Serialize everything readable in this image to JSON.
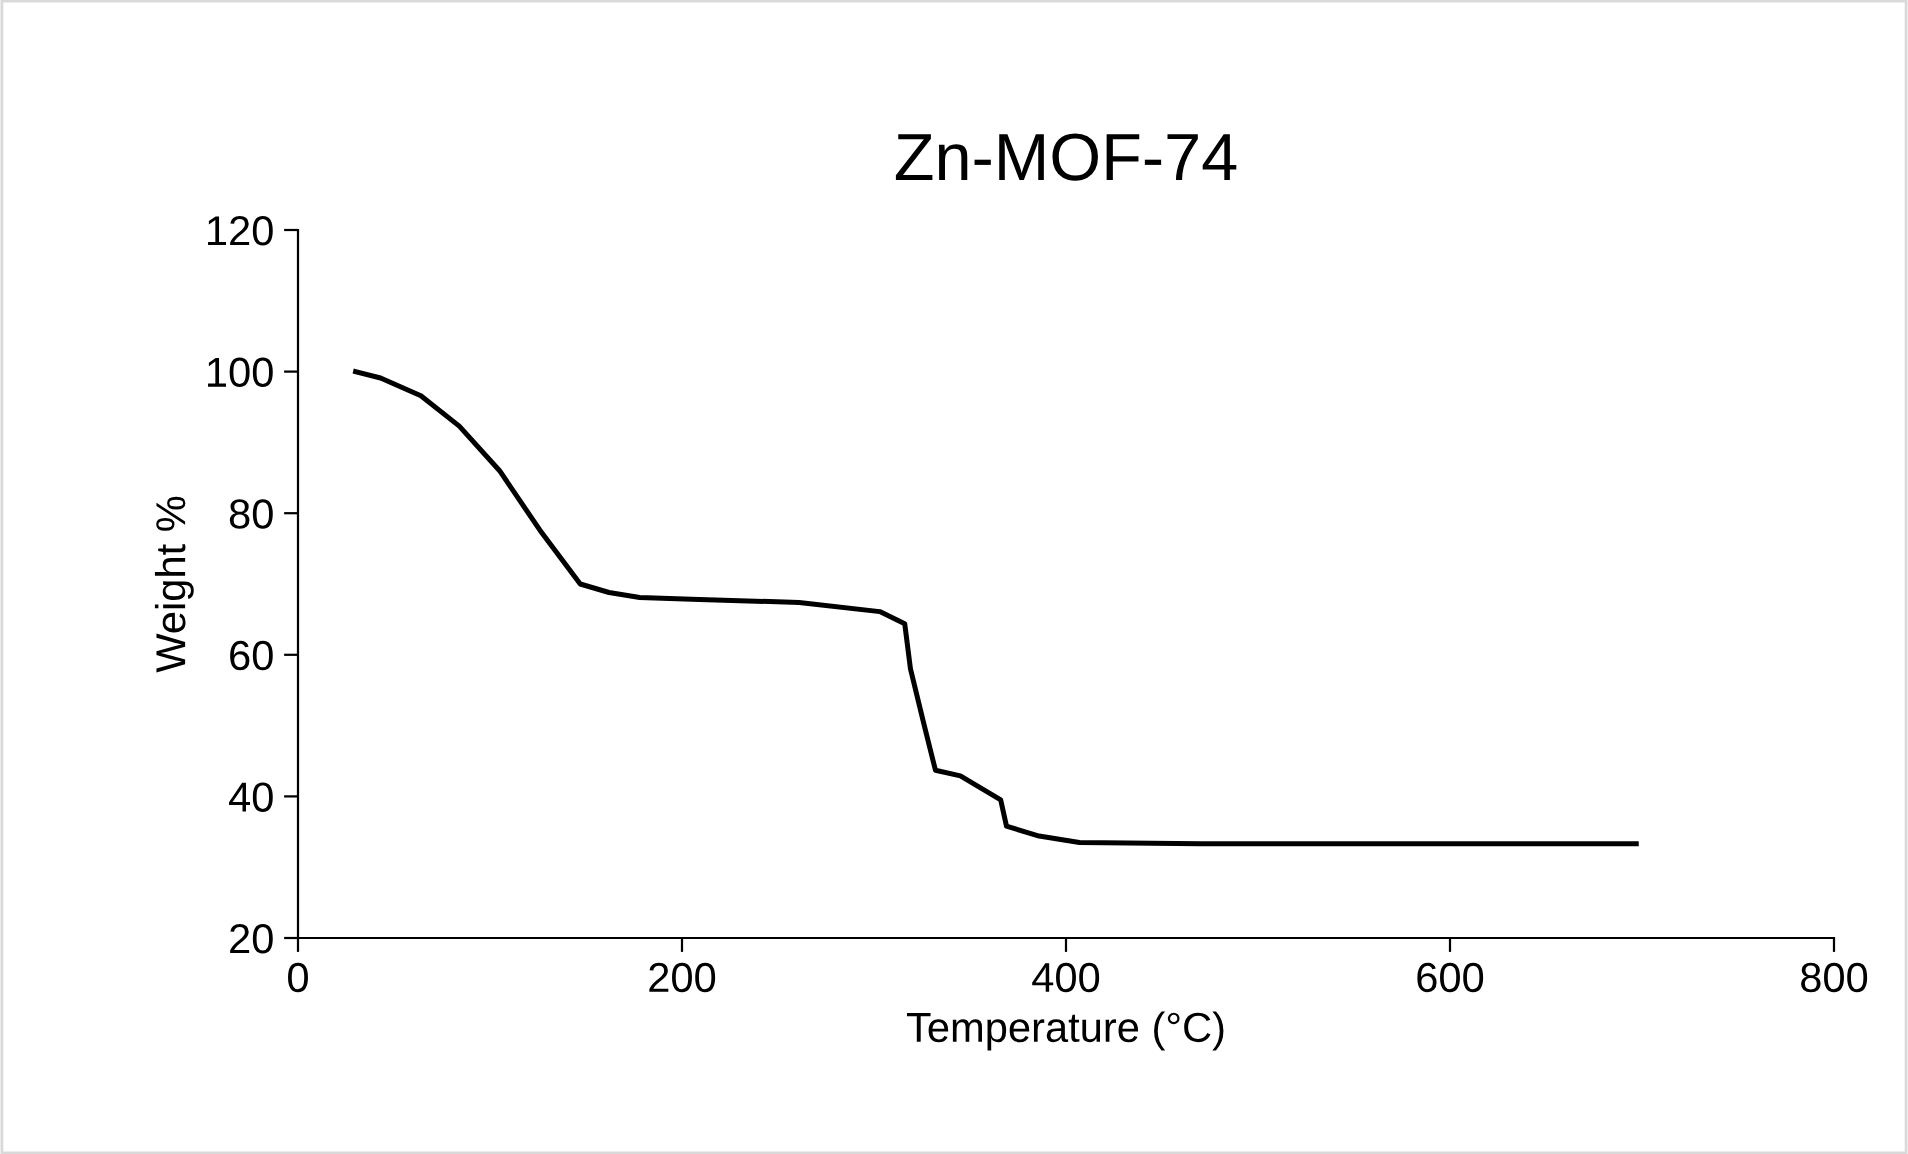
{
  "chart_data": {
    "type": "line",
    "title": "Zn-MOF-74",
    "xlabel": "Temperature (°C)",
    "ylabel": "Weight %",
    "xlim": [
      0,
      800
    ],
    "xticks": [
      0,
      200,
      400,
      600,
      800
    ],
    "ylim": [
      20,
      120
    ],
    "yticks": [
      20,
      40,
      60,
      80,
      100,
      120
    ],
    "grid": false,
    "legend": false,
    "marker": "none",
    "line_style": "solid",
    "series": [
      {
        "color": "#000000",
        "x": [
          30,
          43,
          64,
          84,
          105,
          126,
          147,
          162,
          178,
          209,
          261,
          303,
          316,
          319,
          326,
          332,
          345,
          366,
          369,
          386,
          407,
          470,
          697
        ],
        "values": [
          100,
          99.1,
          96.6,
          92.3,
          86,
          77.6,
          70,
          68.8,
          68.1,
          67.8,
          67.4,
          66.1,
          64.4,
          58,
          50.2,
          43.7,
          42.9,
          39.5,
          35.8,
          34.4,
          33.5,
          33.3,
          33.3
        ]
      }
    ]
  }
}
